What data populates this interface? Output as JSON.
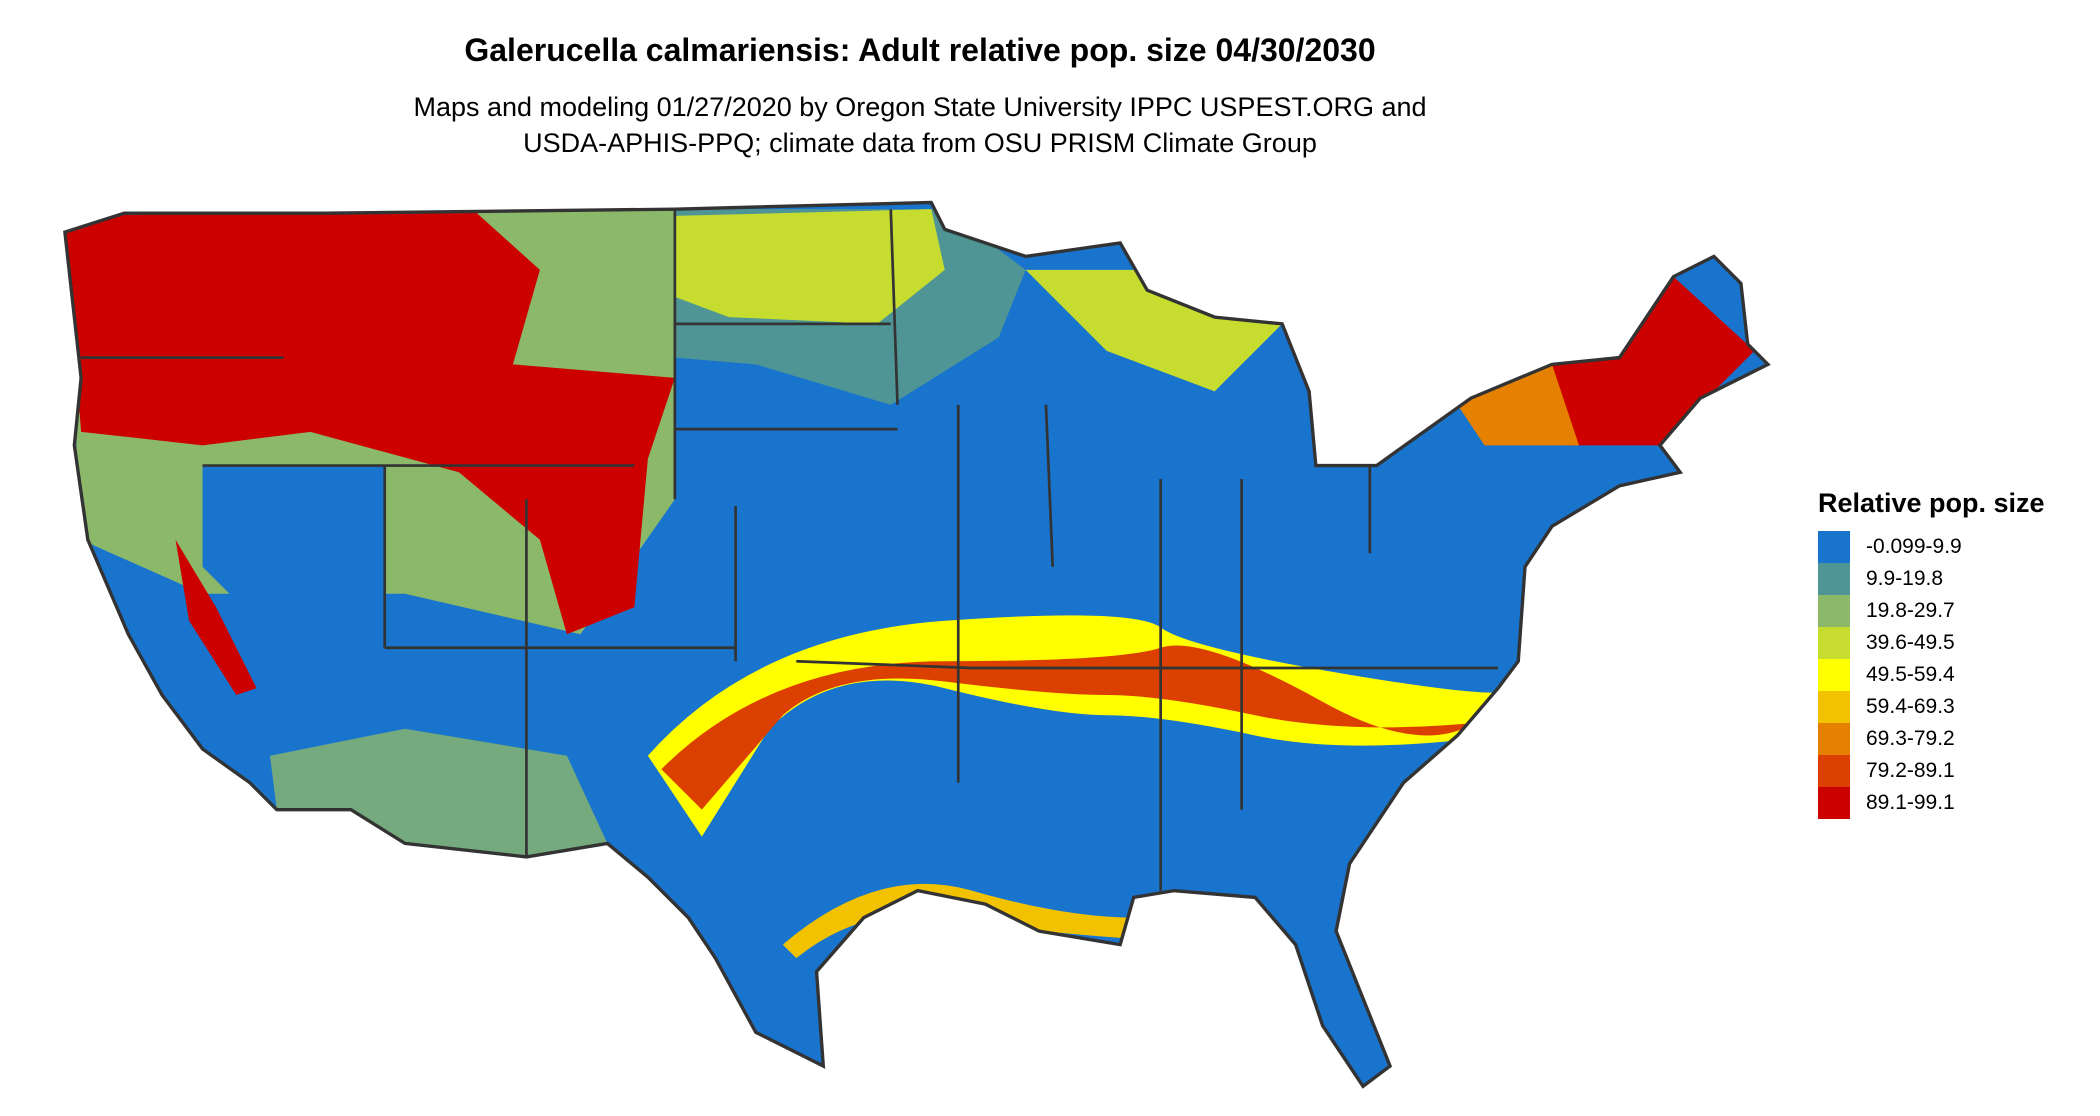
{
  "title": "Galerucella calmariensis: Adult relative pop. size 04/30/2030",
  "subtitle_lines": [
    "Maps and modeling 01/27/2020 by Oregon State University IPPC USPEST.ORG and",
    "USDA-APHIS-PPQ; climate data from OSU PRISM Climate Group"
  ],
  "chart_data": {
    "type": "heatmap",
    "map_region": "contiguous United States",
    "legend": {
      "title": "Relative pop. size",
      "placement": "right",
      "entries": [
        {
          "label": "-0.099-9.9",
          "color": "#1874cd"
        },
        {
          "label": "9.9-19.8",
          "color": "#4f9596"
        },
        {
          "label": "19.8-29.7",
          "color": "#8cb86a"
        },
        {
          "label": "39.6-49.5",
          "color": "#c6dd2f"
        },
        {
          "label": "49.5-59.4",
          "color": "#ffff00"
        },
        {
          "label": "59.4-69.3",
          "color": "#f2c200"
        },
        {
          "label": "69.3-79.2",
          "color": "#e68000"
        },
        {
          "label": "79.2-89.1",
          "color": "#dc4000"
        },
        {
          "label": "89.1-99.1",
          "color": "#cd0000"
        }
      ]
    },
    "border_color": "#333333"
  }
}
